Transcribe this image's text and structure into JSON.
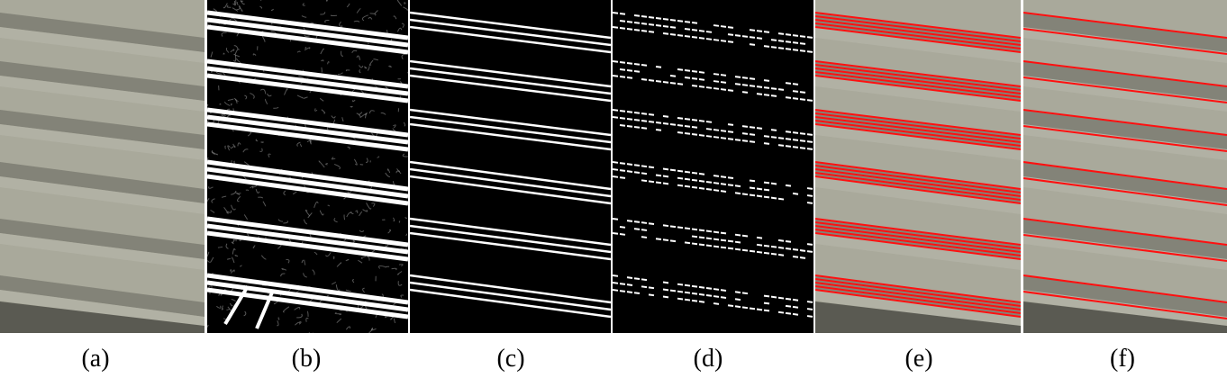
{
  "figure": {
    "panels": [
      {
        "id": "a",
        "caption": "(a)",
        "content": "photo"
      },
      {
        "id": "b",
        "caption": "(b)",
        "content": "edge-magnitude-map"
      },
      {
        "id": "c",
        "caption": "(c)",
        "content": "binary-edge-map"
      },
      {
        "id": "d",
        "caption": "(d)",
        "content": "binary-edge-map-noisy"
      },
      {
        "id": "e",
        "caption": "(e)",
        "content": "photo-with-many-detected-lines"
      },
      {
        "id": "f",
        "caption": "(f)",
        "content": "photo-with-final-lines"
      }
    ],
    "colors": {
      "concrete_light": "#a9a99b",
      "concrete_shadow": "#77776c",
      "edge_white": "#ffffff",
      "background_black": "#000000",
      "detected_line_red": "#ff1010"
    }
  }
}
